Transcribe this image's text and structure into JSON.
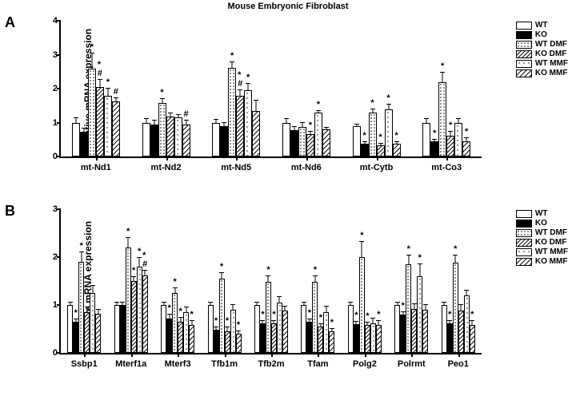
{
  "title": "Mouse Embryonic Fibroblast",
  "ylabel": "Relative mRNA expression",
  "series": [
    {
      "key": "WT",
      "label": "WT",
      "fill": "#ffffff"
    },
    {
      "key": "KO",
      "label": "KO",
      "fill": "#000000"
    },
    {
      "key": "WTDMF",
      "label": "WT DMF",
      "fill": "url(#p-dots)"
    },
    {
      "key": "KODMF",
      "label": "KO DMF",
      "fill": "url(#p-diag)"
    },
    {
      "key": "WTMMF",
      "label": "WT MMF",
      "fill": "url(#p-sparsedots)"
    },
    {
      "key": "KOMMF",
      "label": "KO MMF",
      "fill": "url(#p-diag2)"
    }
  ],
  "panels": {
    "A": {
      "label": "A",
      "ymax": 4,
      "yticks": [
        0,
        1,
        2,
        3,
        4
      ],
      "groups": [
        {
          "name": "mt-Nd1",
          "vals": [
            {
              "v": 1.0,
              "e": 0.12
            },
            {
              "v": 0.72,
              "e": 0.1
            },
            {
              "v": 2.58,
              "e": 0.45,
              "s": "*"
            },
            {
              "v": 2.05,
              "e": 0.2,
              "s": "*#"
            },
            {
              "v": 1.8,
              "e": 0.2,
              "s": "*"
            },
            {
              "v": 1.62,
              "e": 0.1,
              "s": "#"
            }
          ]
        },
        {
          "name": "mt-Nd2",
          "vals": [
            {
              "v": 1.0,
              "e": 0.1
            },
            {
              "v": 0.95,
              "e": 0.1
            },
            {
              "v": 1.58,
              "e": 0.12,
              "s": "*"
            },
            {
              "v": 1.18,
              "e": 0.1
            },
            {
              "v": 1.15,
              "e": 0.08
            },
            {
              "v": 0.95,
              "e": 0.1,
              "s": "#"
            }
          ]
        },
        {
          "name": "mt-Nd5",
          "vals": [
            {
              "v": 1.0,
              "e": 0.08
            },
            {
              "v": 0.9,
              "e": 0.08
            },
            {
              "v": 2.62,
              "e": 0.15,
              "s": "*"
            },
            {
              "v": 1.78,
              "e": 0.18,
              "s": "*#"
            },
            {
              "v": 1.95,
              "e": 0.2,
              "s": "*"
            },
            {
              "v": 1.35,
              "e": 0.3
            }
          ]
        },
        {
          "name": "mt-Nd6",
          "vals": [
            {
              "v": 1.0,
              "e": 0.1
            },
            {
              "v": 0.78,
              "e": 0.08
            },
            {
              "v": 0.88,
              "e": 0.1
            },
            {
              "v": 0.65,
              "e": 0.08,
              "s": "*"
            },
            {
              "v": 1.3,
              "e": 0.05,
              "s": "*"
            },
            {
              "v": 0.8,
              "e": 0.05
            }
          ]
        },
        {
          "name": "mt-Cytb",
          "vals": [
            {
              "v": 0.9,
              "e": 0.05
            },
            {
              "v": 0.38,
              "e": 0.05,
              "s": "*"
            },
            {
              "v": 1.3,
              "e": 0.1,
              "s": "*"
            },
            {
              "v": 0.32,
              "e": 0.05,
              "s": "*"
            },
            {
              "v": 1.38,
              "e": 0.15,
              "s": "*"
            },
            {
              "v": 0.38,
              "e": 0.05,
              "s": "*"
            }
          ]
        },
        {
          "name": "mt-Co3",
          "vals": [
            {
              "v": 1.0,
              "e": 0.1
            },
            {
              "v": 0.45,
              "e": 0.05,
              "s": "*"
            },
            {
              "v": 2.2,
              "e": 0.28,
              "s": "*"
            },
            {
              "v": 0.62,
              "e": 0.1,
              "s": "*"
            },
            {
              "v": 0.98,
              "e": 0.12
            },
            {
              "v": 0.45,
              "e": 0.08,
              "s": "*"
            }
          ]
        }
      ]
    },
    "B": {
      "label": "B",
      "ymax": 3,
      "yticks": [
        0,
        1,
        2,
        3
      ],
      "groups": [
        {
          "name": "Ssbp1",
          "vals": [
            {
              "v": 1.0,
              "e": 0.05
            },
            {
              "v": 0.65,
              "e": 0.05,
              "s": "*"
            },
            {
              "v": 1.9,
              "e": 0.2,
              "s": "*"
            },
            {
              "v": 0.85,
              "e": 0.1
            },
            {
              "v": 1.25,
              "e": 0.15
            },
            {
              "v": 0.82,
              "e": 0.08
            }
          ]
        },
        {
          "name": "Mterf1a",
          "vals": [
            {
              "v": 1.0,
              "e": 0.05
            },
            {
              "v": 1.0,
              "e": 0.05
            },
            {
              "v": 2.2,
              "e": 0.2,
              "s": "*"
            },
            {
              "v": 1.5,
              "e": 0.08,
              "s": "*"
            },
            {
              "v": 1.8,
              "e": 0.18,
              "s": "*"
            },
            {
              "v": 1.62,
              "e": 0.1,
              "s": "*#"
            }
          ]
        },
        {
          "name": "Mterf3",
          "vals": [
            {
              "v": 1.0,
              "e": 0.05
            },
            {
              "v": 0.72,
              "e": 0.08,
              "s": "*"
            },
            {
              "v": 1.25,
              "e": 0.1,
              "s": "*"
            },
            {
              "v": 0.65,
              "e": 0.08,
              "s": "*"
            },
            {
              "v": 0.85,
              "e": 0.1
            },
            {
              "v": 0.58,
              "e": 0.08,
              "s": "*"
            }
          ]
        },
        {
          "name": "Tfb1m",
          "vals": [
            {
              "v": 1.0,
              "e": 0.05
            },
            {
              "v": 0.48,
              "e": 0.05,
              "s": "*"
            },
            {
              "v": 1.55,
              "e": 0.12,
              "s": "*"
            },
            {
              "v": 0.45,
              "e": 0.08,
              "s": "*"
            },
            {
              "v": 0.9,
              "e": 0.1
            },
            {
              "v": 0.4,
              "e": 0.05,
              "s": "*"
            }
          ]
        },
        {
          "name": "Tfb2m",
          "vals": [
            {
              "v": 1.0,
              "e": 0.05
            },
            {
              "v": 0.62,
              "e": 0.05,
              "s": "*"
            },
            {
              "v": 1.48,
              "e": 0.12,
              "s": "*"
            },
            {
              "v": 0.62,
              "e": 0.05,
              "s": "*"
            },
            {
              "v": 1.05,
              "e": 0.12
            },
            {
              "v": 0.88,
              "e": 0.08
            }
          ]
        },
        {
          "name": "Tfam",
          "vals": [
            {
              "v": 1.0,
              "e": 0.05
            },
            {
              "v": 0.65,
              "e": 0.05,
              "s": "*"
            },
            {
              "v": 1.48,
              "e": 0.12,
              "s": "*"
            },
            {
              "v": 0.55,
              "e": 0.05,
              "s": "*"
            },
            {
              "v": 0.85,
              "e": 0.12
            },
            {
              "v": 0.45,
              "e": 0.05,
              "s": "*"
            }
          ]
        },
        {
          "name": "Polg2",
          "vals": [
            {
              "v": 1.0,
              "e": 0.05
            },
            {
              "v": 0.6,
              "e": 0.05,
              "s": "*"
            },
            {
              "v": 2.0,
              "e": 0.32,
              "s": "*"
            },
            {
              "v": 0.58,
              "e": 0.05,
              "s": "*"
            },
            {
              "v": 0.62,
              "e": 0.1
            },
            {
              "v": 0.58,
              "e": 0.08,
              "s": "*"
            }
          ]
        },
        {
          "name": "Polrmt",
          "vals": [
            {
              "v": 1.0,
              "e": 0.05
            },
            {
              "v": 0.8,
              "e": 0.05,
              "s": "*"
            },
            {
              "v": 1.85,
              "e": 0.18,
              "s": "*"
            },
            {
              "v": 0.92,
              "e": 0.1
            },
            {
              "v": 1.6,
              "e": 0.25,
              "s": "*"
            },
            {
              "v": 0.9,
              "e": 0.1
            }
          ]
        },
        {
          "name": "Peo1",
          "vals": [
            {
              "v": 1.0,
              "e": 0.05
            },
            {
              "v": 0.62,
              "e": 0.05,
              "s": "*"
            },
            {
              "v": 1.88,
              "e": 0.15,
              "s": "*"
            },
            {
              "v": 0.88,
              "e": 0.12
            },
            {
              "v": 1.2,
              "e": 0.1
            },
            {
              "v": 0.58,
              "e": 0.08,
              "s": "*"
            }
          ]
        }
      ]
    }
  }
}
